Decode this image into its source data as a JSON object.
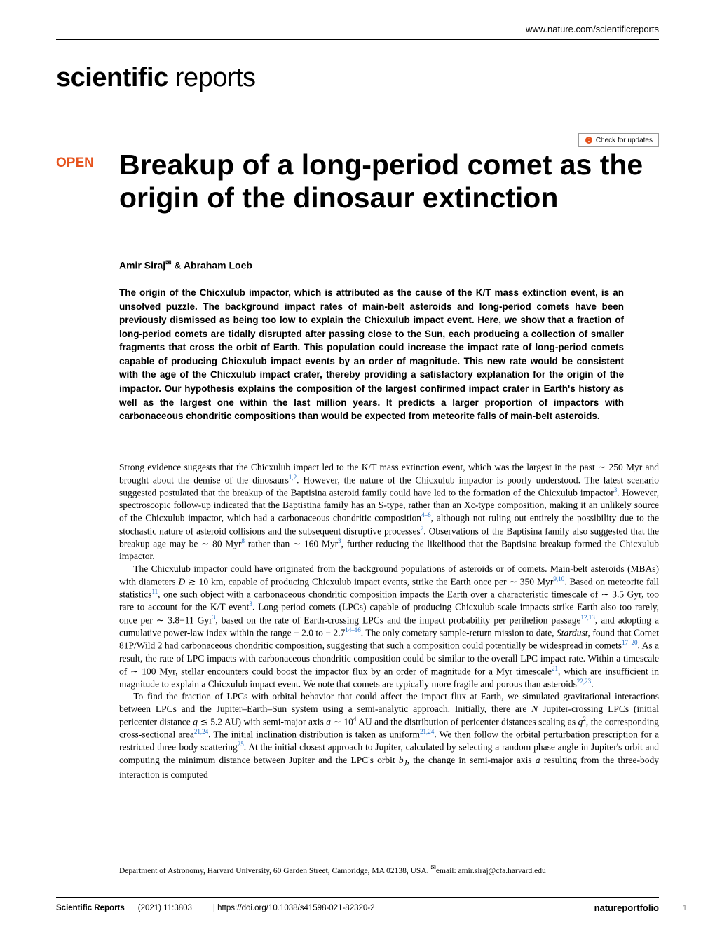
{
  "header": {
    "url": "www.nature.com/scientificreports"
  },
  "logo": {
    "bold": "scientific",
    "light": " reports"
  },
  "check_updates": "Check for updates",
  "open_badge": "OPEN",
  "title": "Breakup of a long-period comet as the origin of the dinosaur extinction",
  "authors_html": "Amir Siraj<sup>✉</sup> & Abraham Loeb",
  "abstract": "The origin of the Chicxulub impactor, which is attributed as the cause of the K/T mass extinction event, is an unsolved puzzle. The background impact rates of main-belt asteroids and long-period comets have been previously dismissed as being too low to explain the Chicxulub impact event. Here, we show that a fraction of long-period comets are tidally disrupted after passing close to the Sun, each producing a collection of smaller fragments that cross the orbit of Earth. This population could increase the impact rate of long-period comets capable of producing Chicxulub impact events by an order of magnitude. This new rate would be consistent with the age of the Chicxulub impact crater, thereby providing a satisfactory explanation for the origin of the impactor. Our hypothesis explains the composition of the largest confirmed impact crater in Earth's history as well as the largest one within the last million years. It predicts a larger proportion of impactors with carbonaceous chondritic compositions than would be expected from meteorite falls of main-belt asteroids.",
  "body": {
    "p1": "Strong evidence suggests that the Chicxulub impact led to the K/T mass extinction event, which was the largest in the past ∼ 250 Myr and brought about the demise of the dinosaurs<sup>1,2</sup>. However, the nature of the Chicxulub impactor is poorly understood. The latest scenario suggested postulated that the breakup of the Baptisina asteroid family could have led to the formation of the Chicxulub impactor<sup>3</sup>. However, spectroscopic follow-up indicated that the Baptistina family has an S-type, rather than an Xc-type composition, making it an unlikely source of the Chicxulub impactor, which had a carbonaceous chondritic composition<sup>4–6</sup>, although not ruling out entirely the possibility due to the stochastic nature of asteroid collisions and the subsequent disruptive processes<sup>7</sup>. Observations of the Baptisina family also suggested that the breakup age may be ∼ 80 Myr<sup>8</sup> rather than ∼ 160 Myr<sup>3</sup>, further reducing the likelihood that the Baptisina breakup formed the Chicxulub impactor.",
    "p2": "The Chicxulub impactor could have originated from the background populations of asteroids or of comets. Main-belt asteroids (MBAs) with diameters <em>D</em> ≳ 10 km, capable of producing Chicxulub impact events, strike the Earth once per ∼ 350 Myr<sup>9,10</sup>. Based on meteorite fall statistics<sup>11</sup>, one such object with a carbonaceous chondritic composition impacts the Earth over a characteristic timescale of ∼ 3.5 Gyr, too rare to account for the K/T event<sup>3</sup>. Long-period comets (LPCs) capable of producing Chicxulub-scale impacts strike Earth also too rarely, once per ∼ 3.8−11 Gyr<sup>3</sup>, based on the rate of Earth-crossing LPCs and the impact probability per perihelion passage<sup>12,13</sup>, and adopting a cumulative power-law index within the range − 2.0 to − 2.7<sup>14–16</sup>. The only cometary sample-return mission to date, <em>Stardust</em>, found that Comet 81P/Wild 2 had carbonaceous chondritic composition, suggesting that such a composition could potentially be widespread in comets<sup>17–20</sup>. As a result, the rate of LPC impacts with carbonaceous chondritic composition could be similar to the overall LPC impact rate. Within a timescale of ∼ 100 Myr, stellar encounters could boost the impactor flux by an order of magnitude for a Myr timescale<sup>21</sup>, which are insufficient in magnitude to explain a Chicxulub impact event. We note that comets are typically more fragile and porous than asteroids<sup>22,23</sup>.",
    "p3": "To find the fraction of LPCs with orbital behavior that could affect the impact flux at Earth, we simulated gravitational interactions between LPCs and the Jupiter–Earth–Sun system using a semi-analytic approach. Initially, there are <em>N</em> Jupiter-crossing LPCs (initial pericenter distance <em>q</em> ≲ 5.2 AU) with semi-major axis <em>a</em> ∼ 10<sup style='color:#000'>4</sup> AU and the distribution of pericenter distances scaling as <em>q</em><sup style='color:#000'>2</sup>, the corresponding cross-sectional area<sup>21,24</sup>. The initial inclination distribution is taken as uniform<sup>21,24</sup>. We then follow the orbital perturbation prescription for a restricted three-body scattering<sup>25</sup>. At the initial closest approach to Jupiter, calculated by selecting a random phase angle in Jupiter's orbit and computing the minimum distance between Jupiter and the LPC's orbit <em>b<sub>J</sub></em>, the change in semi-major axis <em>a</em> resulting from the three-body interaction is computed"
  },
  "affiliation": "Department of Astronomy, Harvard University, 60 Garden Street, Cambridge, MA 02138, USA. <sup>✉</sup>email: amir.siraj@cfa.harvard.edu",
  "footer": {
    "journal": "Scientific Reports",
    "citation": "(2021) 11:3803",
    "doi": "https://doi.org/10.1038/s41598-021-82320-2",
    "publisher": "natureportfolio",
    "page": "1"
  }
}
